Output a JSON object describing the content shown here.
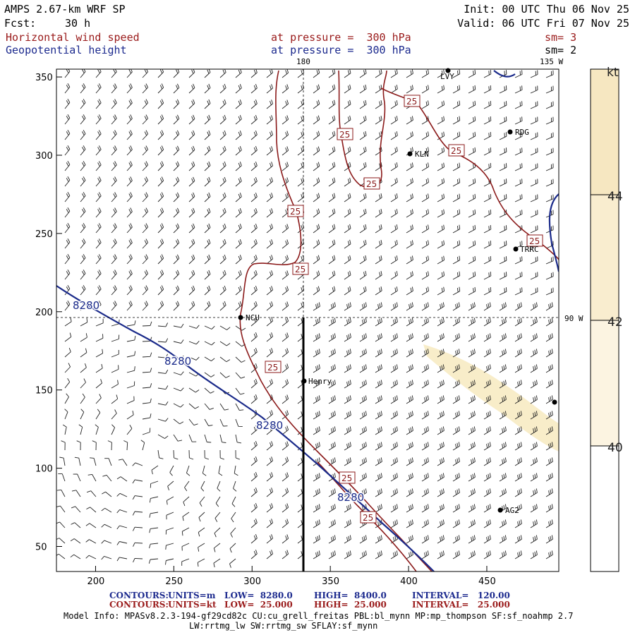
{
  "header": {
    "title": "AMPS 2.67-km WRF SP",
    "forecast_label": "Fcst:",
    "forecast_value": "30 h",
    "init": "Init: 00 UTC Thu 06 Nov 25",
    "valid": "Valid: 06 UTC Fri 07 Nov 25",
    "field1": "Horizontal wind speed",
    "field2": "Geopotential height",
    "pressure1": "at pressure =  300 hPa",
    "pressure2": "at pressure =  300 hPa",
    "sm1": "sm= 3",
    "sm2": "sm= 2"
  },
  "colors": {
    "wind_contour": "#8b1a1a",
    "height_contour": "#1a2a8a",
    "shade_40_42": "#faf0d4",
    "shade_42_44": "#f8ecc8",
    "shade_44": "#f6e7c1"
  },
  "map": {
    "lon_labels": [
      "180",
      "135 W",
      "90 W"
    ],
    "x_ticks": [
      "200",
      "250",
      "300",
      "350",
      "400",
      "450"
    ],
    "y_ticks": [
      "350",
      "300",
      "250",
      "200",
      "150",
      "100",
      "50"
    ],
    "wind_contour_label": "25",
    "height_contour_label": "8280",
    "stations": [
      "LVY",
      "RDG",
      "KLN",
      "TRRC",
      "NCU",
      "Henry",
      "AG2"
    ]
  },
  "colorbar": {
    "unit": "kt",
    "levels": [
      "44",
      "42",
      "40"
    ]
  },
  "footer": {
    "c1_label": "CONTOURS:",
    "c1_units": "UNITS=m",
    "c1_low": "LOW=  8280.0",
    "c1_high": "HIGH=  8400.0",
    "c1_int": "INTERVAL=   120.00",
    "c2_label": "CONTOURS:",
    "c2_units": "UNITS=kt",
    "c2_low": "LOW=  25.000",
    "c2_high": "HIGH=  25.000",
    "c2_int": "INTERVAL=   25.000",
    "model_info": "Model Info: MPASv8.2.3-194-gf29cd82c CU:cu_grell_freitas PBL:bl_mynn MP:mp_thompson SF:sf_noahmp 2.7",
    "model_info2": "LW:rrtmg_lw SW:rrtmg_sw SFLAY:sf_mynn"
  }
}
